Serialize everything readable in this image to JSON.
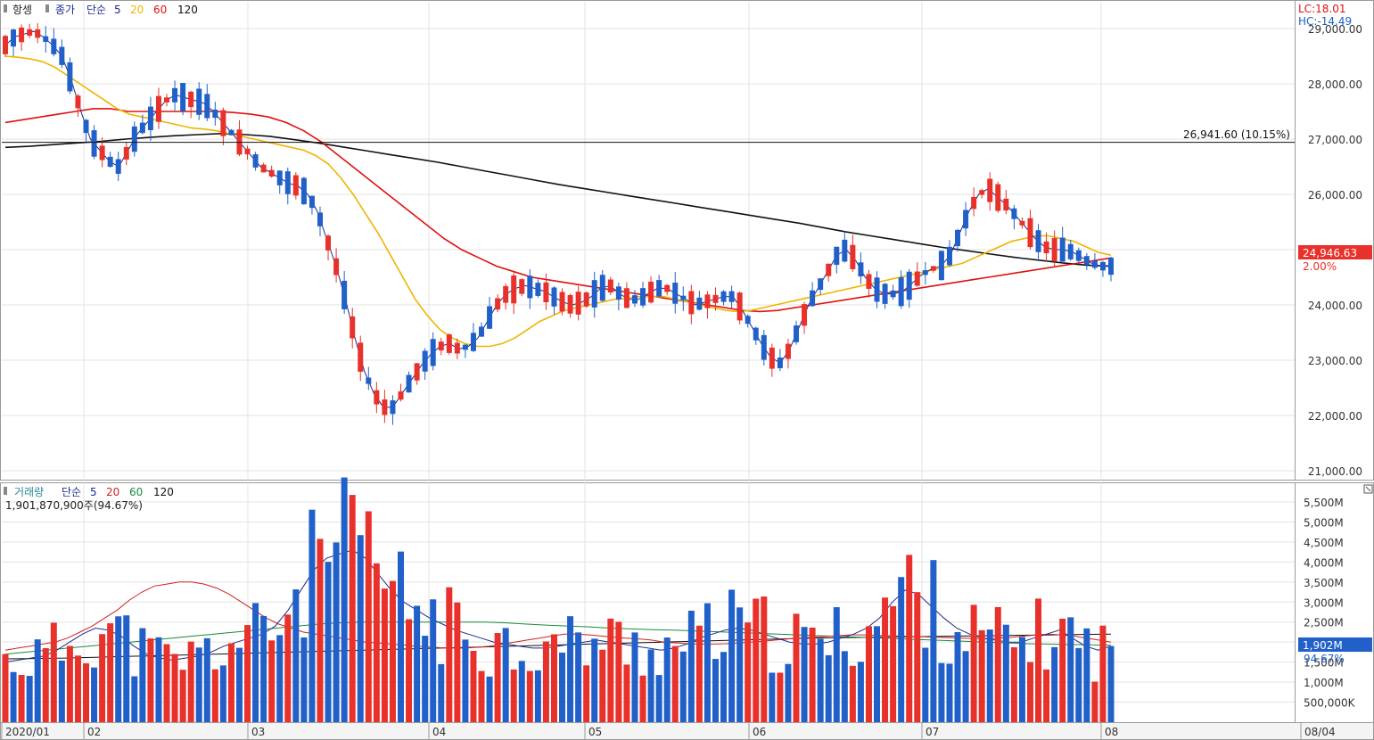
{
  "legend_price": {
    "name": "항셍",
    "close": "종가",
    "ma_type": "단순",
    "ma5": "5",
    "ma20": "20",
    "ma60": "60",
    "ma120": "120"
  },
  "legend_volume": {
    "name": "거래량",
    "ma_type": "단순",
    "ma5": "5",
    "ma20": "20",
    "ma60": "60",
    "ma120": "120",
    "value": "1,901,870,900주(94.67%)"
  },
  "corner": {
    "lc": "LC:18.01",
    "hc": "HC:-14.49"
  },
  "annotation": "26,941.60 (10.15%)",
  "current": {
    "price": "24,946.63",
    "change": "2.00%"
  },
  "volume_current": {
    "value": "1,902M",
    "pct": "94.67%"
  },
  "colors": {
    "up": "#e8312b",
    "down": "#2060c8",
    "ma5": "#1b2b8c",
    "ma20": "#f0b400",
    "ma60": "#e01010",
    "ma120": "#111111",
    "vol_ma20": "#d02020",
    "vol_ma60": "#1a8a3a"
  },
  "chart_data": [
    {
      "type": "candlestick",
      "title": "항셍",
      "y_ticks": [
        "29,000.00",
        "28,000.00",
        "27,000.00",
        "26,000.00",
        "25,000.00",
        "24,000.00",
        "23,000.00",
        "22,000.00",
        "21,000.00"
      ],
      "ylim": [
        20900,
        29300
      ],
      "x_ticks": [
        "2020/01",
        "02",
        "03",
        "04",
        "05",
        "06",
        "07",
        "08",
        "08/04"
      ],
      "reference_line": 26941.6,
      "last_close": 24946.63,
      "series": [
        {
          "name": "5",
          "values": [
            28700,
            28850,
            28900,
            28950,
            28850,
            28700,
            28500,
            28050,
            27500,
            27000,
            26800,
            26600,
            26500,
            26800,
            27100,
            27300,
            27500,
            27700,
            27800,
            27750,
            27700,
            27650,
            27500,
            27300,
            27100,
            26900,
            26700,
            26500,
            26400,
            26300,
            26200,
            26150,
            26000,
            25700,
            25200,
            24700,
            24100,
            23400,
            22800,
            22400,
            22150,
            22150,
            22400,
            22650,
            22900,
            23100,
            23250,
            23300,
            23200,
            23250,
            23400,
            23700,
            24000,
            24200,
            24300,
            24350,
            24300,
            24250,
            24150,
            24050,
            24000,
            24050,
            24150,
            24300,
            24350,
            24200,
            24100,
            24100,
            24200,
            24300,
            24300,
            24200,
            24100,
            24000,
            24050,
            24100,
            24150,
            24150,
            23900,
            23600,
            23300,
            23050,
            22950,
            23200,
            23600,
            24000,
            24300,
            24600,
            24900,
            25000,
            24800,
            24500,
            24300,
            24200,
            24200,
            24250,
            24400,
            24550,
            24650,
            24700,
            24900,
            25300,
            25700,
            26000,
            26100,
            25950,
            25800,
            25600,
            25400,
            25200,
            25050,
            25000,
            25000,
            24950,
            24850,
            24750,
            24700,
            24700
          ]
        },
        {
          "name": "20",
          "values": [
            28500,
            28480,
            28450,
            28400,
            28300,
            28150,
            28000,
            27850,
            27700,
            27550,
            27450,
            27400,
            27350,
            27300,
            27250,
            27200,
            27180,
            27150,
            27100,
            27050,
            27000,
            26950,
            26900,
            26850,
            26800,
            26700,
            26550,
            26300,
            26000,
            25650,
            25300,
            24900,
            24500,
            24100,
            23800,
            23550,
            23400,
            23300,
            23250,
            23250,
            23300,
            23400,
            23550,
            23700,
            23800,
            23900,
            23950,
            24000,
            24050,
            24100,
            24120,
            24150,
            24150,
            24150,
            24100,
            24050,
            24000,
            23950,
            23900,
            23880,
            23900,
            23950,
            24000,
            24050,
            24100,
            24150,
            24200,
            24250,
            24300,
            24350,
            24400,
            24450,
            24500,
            24550,
            24600,
            24650,
            24700,
            24750,
            24850,
            24950,
            25050,
            25150,
            25200,
            25250,
            25250,
            25200,
            25150,
            25050,
            24950,
            24900
          ]
        },
        {
          "name": "60",
          "values": [
            27300,
            27350,
            27400,
            27450,
            27500,
            27550,
            27550,
            27500,
            27500,
            27500,
            27500,
            27500,
            27500,
            27480,
            27450,
            27400,
            27300,
            27150,
            26950,
            26700,
            26450,
            26200,
            25950,
            25700,
            25450,
            25200,
            25000,
            24850,
            24700,
            24600,
            24500,
            24450,
            24400,
            24350,
            24300,
            24250,
            24200,
            24150,
            24100,
            24050,
            24000,
            23950,
            23900,
            23880,
            23900,
            23950,
            24000,
            24050,
            24100,
            24150,
            24200,
            24250,
            24300,
            24350,
            24400,
            24450,
            24500,
            24550,
            24600,
            24650,
            24700,
            24750,
            24800,
            24850
          ]
        },
        {
          "name": "120",
          "values": [
            26850,
            26870,
            26900,
            26930,
            26960,
            27000,
            27030,
            27060,
            27080,
            27100,
            27080,
            27050,
            26990,
            26930,
            26860,
            26790,
            26720,
            26650,
            26580,
            26500,
            26420,
            26340,
            26260,
            26180,
            26110,
            26040,
            25970,
            25900,
            25830,
            25760,
            25690,
            25620,
            25550,
            25480,
            25400,
            25320,
            25250,
            25180,
            25110,
            25040,
            24980,
            24920,
            24860,
            24810,
            24760,
            24720,
            24700
          ]
        }
      ]
    },
    {
      "type": "bar",
      "title": "거래량",
      "y_ticks": [
        "5,500M",
        "5,000M",
        "4,500M",
        "4,000M",
        "3,500M",
        "3,000M",
        "2,500M",
        "2,000M",
        "1,500M",
        "1,000M",
        "500,000K"
      ],
      "ylim": [
        0,
        5800
      ],
      "last_value": 1902,
      "series": [
        {
          "name": "5",
          "values": [
            1500,
            1550,
            1600,
            1650,
            1800,
            2000,
            2200,
            2350,
            2300,
            2150,
            1900,
            1700,
            1600,
            1550,
            1600,
            1650,
            1750,
            1900,
            2000,
            2100,
            2200,
            2400,
            2800,
            3300,
            3800,
            4100,
            4200,
            4300,
            4100,
            3700,
            3300,
            3000,
            2800,
            2600,
            2450,
            2300,
            2200,
            2100,
            2000,
            1950,
            1900,
            1850,
            1850,
            1900,
            1950,
            2000,
            2050,
            2000,
            1950,
            1900,
            1850,
            1800,
            1850,
            1950,
            2100,
            2200,
            2300,
            2350,
            2300,
            2200,
            2100,
            2000,
            1950,
            1950,
            2000,
            2100,
            2200,
            2350,
            2600,
            3000,
            3300,
            3200,
            2900,
            2600,
            2350,
            2200,
            2100,
            2050,
            2000,
            2000,
            2100,
            2200,
            2300,
            2100,
            1900,
            1800,
            1900
          ]
        },
        {
          "name": "20",
          "values": [
            1800,
            1850,
            1900,
            1950,
            2000,
            2100,
            2250,
            2400,
            2600,
            2800,
            3050,
            3250,
            3400,
            3450,
            3500,
            3500,
            3450,
            3350,
            3200,
            3000,
            2800,
            2600,
            2450,
            2350,
            2250,
            2200,
            2150,
            2100,
            2050,
            2000,
            1980,
            1950,
            1930,
            1900,
            1880,
            1860,
            1850,
            1850,
            1870,
            1900,
            1950,
            2000,
            2050,
            2100,
            2150,
            2200,
            2200,
            2180,
            2150,
            2120,
            2100,
            2080,
            2050,
            2000,
            1980,
            1960,
            1950,
            1950,
            1960,
            1980,
            2000,
            2020,
            2050,
            2080,
            2100,
            2120,
            2140,
            2160,
            2180,
            2180,
            2170,
            2160,
            2150,
            2140,
            2130,
            2120,
            2110,
            2100,
            2090,
            2080,
            2100,
            2120,
            2150,
            2180,
            2200,
            2180,
            2150,
            2100,
            2050,
            2000
          ]
        },
        {
          "name": "60",
          "values": [
            1700,
            1750,
            1800,
            1850,
            1900,
            1950,
            2000,
            2050,
            2100,
            2150,
            2200,
            2250,
            2300,
            2350,
            2400,
            2450,
            2480,
            2500,
            2500,
            2500,
            2500,
            2500,
            2500,
            2500,
            2480,
            2450,
            2420,
            2400,
            2380,
            2350,
            2330,
            2310,
            2300,
            2280,
            2260,
            2240,
            2220,
            2200,
            2180,
            2160,
            2140,
            2120,
            2100,
            2080,
            2060,
            2040,
            2020,
            2000,
            1980,
            1960,
            1950,
            1940,
            1930,
            1920
          ]
        },
        {
          "name": "120",
          "values": [
            1580,
            1590,
            1600,
            1620,
            1640,
            1660,
            1680,
            1700,
            1720,
            1740,
            1760,
            1780,
            1800,
            1820,
            1840,
            1860,
            1880,
            1900,
            1920,
            1940,
            1960,
            1980,
            2000,
            2020,
            2040,
            2060,
            2080,
            2100,
            2110,
            2120,
            2130,
            2140,
            2150,
            2160,
            2170,
            2180,
            2190,
            2200
          ]
        }
      ]
    }
  ]
}
